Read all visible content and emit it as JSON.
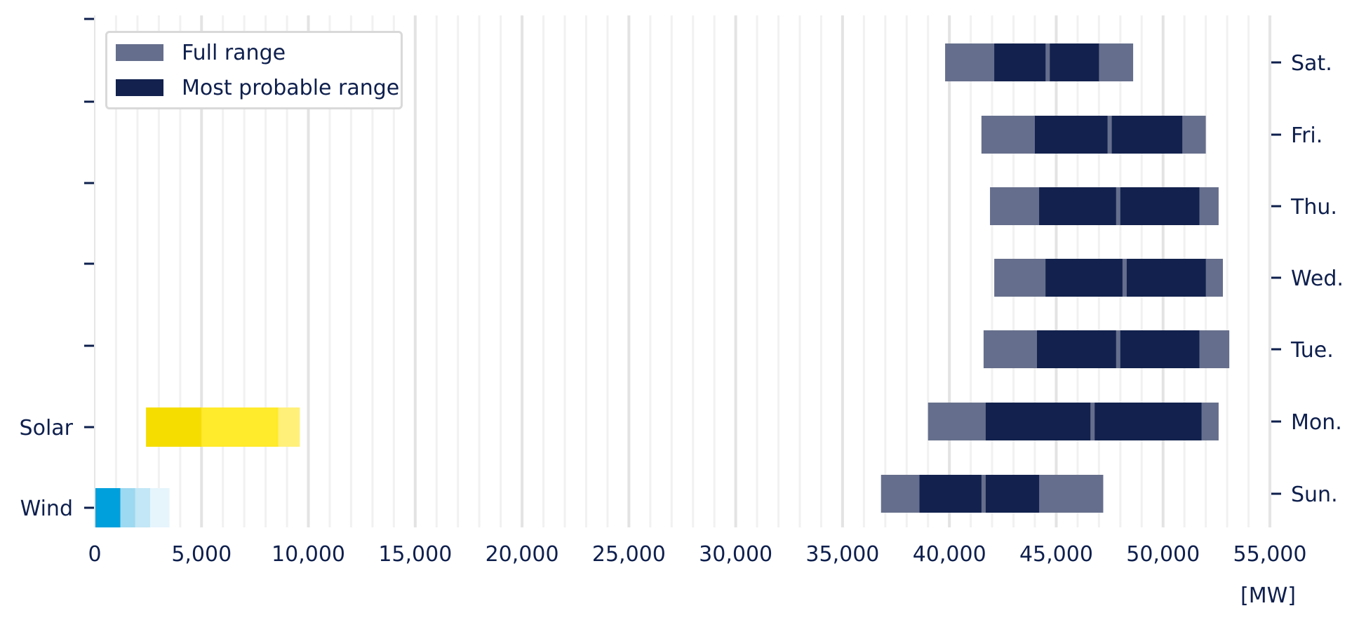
{
  "chart_data": {
    "type": "bar",
    "xlim": [
      0,
      55000
    ],
    "x_ticks": [
      0,
      5000,
      10000,
      15000,
      20000,
      25000,
      30000,
      35000,
      40000,
      45000,
      50000,
      55000
    ],
    "x_tick_labels": [
      "0",
      "5,000",
      "10,000",
      "15,000",
      "20,000",
      "25,000",
      "30,000",
      "35,000",
      "40,000",
      "45,000",
      "50,000",
      "55,000"
    ],
    "unit_label": "[MW]",
    "grid": true,
    "legend": {
      "placement": "top-left",
      "entries": [
        {
          "label": "Full range",
          "color": "#656e8c"
        },
        {
          "label": "Most probable range",
          "color": "#12214d"
        }
      ]
    },
    "left_axis_labels": [
      "Solar",
      "Wind"
    ],
    "right_axis_labels": [
      "Sat.",
      "Fri.",
      "Thu.",
      "Wed.",
      "Tue.",
      "Mon.",
      "Sun."
    ],
    "demand_series": [
      {
        "day": "Sat.",
        "full_range": [
          39800,
          48600
        ],
        "probable_low": [
          42100,
          44500
        ],
        "probable_high": [
          44700,
          47000
        ]
      },
      {
        "day": "Fri.",
        "full_range": [
          41500,
          52000
        ],
        "probable_low": [
          44000,
          47400
        ],
        "probable_high": [
          47600,
          50900
        ]
      },
      {
        "day": "Thu.",
        "full_range": [
          41900,
          52600
        ],
        "probable_low": [
          44200,
          47800
        ],
        "probable_high": [
          48000,
          51700
        ]
      },
      {
        "day": "Wed.",
        "full_range": [
          42100,
          52800
        ],
        "probable_low": [
          44500,
          48100
        ],
        "probable_high": [
          48300,
          52000
        ]
      },
      {
        "day": "Tue.",
        "full_range": [
          41600,
          53100
        ],
        "probable_low": [
          44100,
          47800
        ],
        "probable_high": [
          48000,
          51700
        ]
      },
      {
        "day": "Mon.",
        "full_range": [
          39000,
          52600
        ],
        "probable_low": [
          41700,
          46600
        ],
        "probable_high": [
          46800,
          51800
        ]
      },
      {
        "day": "Sun.",
        "full_range": [
          36800,
          47200
        ],
        "probable_low": [
          38600,
          41500
        ],
        "probable_high": [
          41700,
          44200
        ]
      }
    ],
    "renewables": [
      {
        "name": "Solar",
        "segments": [
          {
            "from": 2400,
            "to": 5000,
            "color": "#f5dd00"
          },
          {
            "from": 5000,
            "to": 8600,
            "color": "#ffea2b"
          },
          {
            "from": 8600,
            "to": 9600,
            "color": "#fff07a"
          }
        ]
      },
      {
        "name": "Wind",
        "segments": [
          {
            "from": 0,
            "to": 1200,
            "color": "#00a0dc"
          },
          {
            "from": 1200,
            "to": 1900,
            "color": "#9dd9f0"
          },
          {
            "from": 1900,
            "to": 2600,
            "color": "#c3e7f6"
          },
          {
            "from": 2600,
            "to": 3500,
            "color": "#e6f5fc"
          }
        ]
      }
    ]
  }
}
